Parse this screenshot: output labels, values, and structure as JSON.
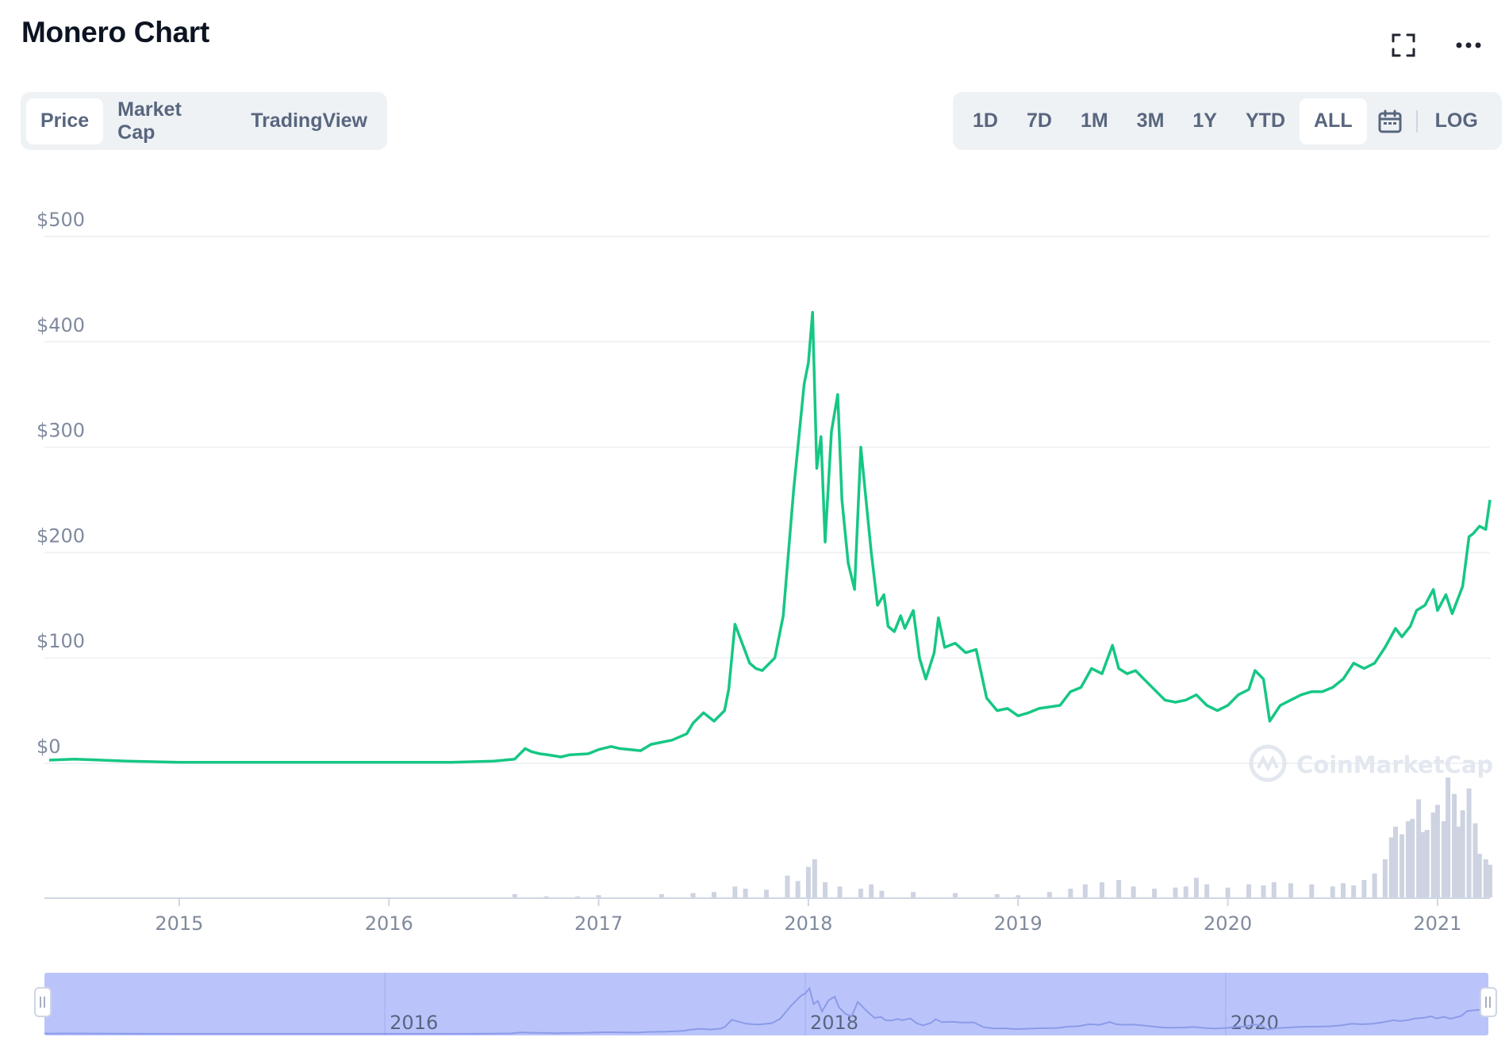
{
  "header": {
    "title": "Monero Chart",
    "expand_icon": "fullscreen-icon",
    "more_icon": "more-horizontal-icon"
  },
  "view_tabs": [
    {
      "label": "Price",
      "active": true
    },
    {
      "label": "Market Cap",
      "active": false
    },
    {
      "label": "TradingView",
      "active": false
    }
  ],
  "range_tabs": [
    {
      "label": "1D",
      "active": false
    },
    {
      "label": "7D",
      "active": false
    },
    {
      "label": "1M",
      "active": false
    },
    {
      "label": "3M",
      "active": false
    },
    {
      "label": "1Y",
      "active": false
    },
    {
      "label": "YTD",
      "active": false
    },
    {
      "label": "ALL",
      "active": true
    }
  ],
  "calendar_icon": "calendar-icon",
  "log_label": "LOG",
  "watermark": "CoinMarketCap",
  "colors": {
    "line": "#16c784",
    "volume": "#cdd3e1",
    "navigator_fill": "#bac4fb",
    "navigator_line": "#8c9be8",
    "grid": "#eff2f5",
    "axis_text": "#808a9d"
  },
  "chart_data": {
    "type": "line",
    "title": "",
    "xlabel": "",
    "ylabel": "",
    "y_ticks": [
      "$0",
      "$100",
      "$200",
      "$300",
      "$400",
      "$500"
    ],
    "x_ticks": [
      "2015",
      "2016",
      "2017",
      "2018",
      "2019",
      "2020",
      "2021"
    ],
    "ylim": [
      0,
      500
    ],
    "grid": true,
    "series": [
      {
        "name": "",
        "x": [
          2014.38,
          2014.5,
          2014.75,
          2015.0,
          2015.5,
          2016.0,
          2016.3,
          2016.5,
          2016.6,
          2016.65,
          2016.68,
          2016.72,
          2016.76,
          2016.82,
          2016.86,
          2016.95,
          2017.0,
          2017.06,
          2017.1,
          2017.2,
          2017.25,
          2017.35,
          2017.42,
          2017.45,
          2017.5,
          2017.55,
          2017.6,
          2017.62,
          2017.65,
          2017.72,
          2017.75,
          2017.78,
          2017.84,
          2017.88,
          2017.93,
          2017.98,
          2018.0,
          2018.02,
          2018.04,
          2018.06,
          2018.08,
          2018.11,
          2018.14,
          2018.16,
          2018.19,
          2018.22,
          2018.25,
          2018.28,
          2018.3,
          2018.33,
          2018.36,
          2018.38,
          2018.41,
          2018.44,
          2018.46,
          2018.5,
          2018.53,
          2018.56,
          2018.6,
          2018.62,
          2018.65,
          2018.7,
          2018.75,
          2018.8,
          2018.85,
          2018.9,
          2018.95,
          2019.0,
          2019.05,
          2019.1,
          2019.2,
          2019.25,
          2019.3,
          2019.35,
          2019.4,
          2019.45,
          2019.48,
          2019.52,
          2019.56,
          2019.6,
          2019.7,
          2019.75,
          2019.8,
          2019.85,
          2019.9,
          2019.95,
          2020.0,
          2020.05,
          2020.1,
          2020.13,
          2020.17,
          2020.2,
          2020.25,
          2020.3,
          2020.35,
          2020.4,
          2020.45,
          2020.5,
          2020.55,
          2020.6,
          2020.65,
          2020.7,
          2020.75,
          2020.8,
          2020.83,
          2020.87,
          2020.9,
          2020.94,
          2020.98,
          2021.0,
          2021.04,
          2021.07,
          2021.12,
          2021.15,
          2021.17,
          2021.2,
          2021.23,
          2021.25
        ],
        "y": [
          3,
          4,
          2,
          1,
          1,
          1,
          1,
          2,
          4,
          14,
          11,
          9,
          8,
          6,
          8,
          9,
          13,
          16,
          14,
          12,
          18,
          22,
          28,
          38,
          48,
          40,
          50,
          70,
          132,
          95,
          90,
          88,
          100,
          140,
          260,
          360,
          380,
          428,
          280,
          310,
          210,
          315,
          350,
          250,
          190,
          165,
          300,
          240,
          200,
          150,
          160,
          130,
          125,
          140,
          128,
          145,
          100,
          80,
          105,
          138,
          110,
          114,
          105,
          108,
          62,
          50,
          52,
          45,
          48,
          52,
          55,
          68,
          72,
          90,
          85,
          112,
          90,
          85,
          88,
          80,
          60,
          58,
          60,
          65,
          55,
          50,
          55,
          65,
          70,
          88,
          80,
          40,
          55,
          60,
          65,
          68,
          68,
          72,
          80,
          95,
          90,
          95,
          110,
          128,
          120,
          130,
          145,
          150,
          165,
          145,
          160,
          142,
          168,
          215,
          218,
          225,
          222,
          250
        ]
      }
    ],
    "volume": {
      "x": [
        2016.6,
        2016.75,
        2016.9,
        2017.0,
        2017.3,
        2017.45,
        2017.55,
        2017.65,
        2017.7,
        2017.8,
        2017.9,
        2017.95,
        2018.0,
        2018.03,
        2018.08,
        2018.15,
        2018.25,
        2018.3,
        2018.35,
        2018.5,
        2018.7,
        2018.9,
        2019.0,
        2019.15,
        2019.25,
        2019.32,
        2019.4,
        2019.48,
        2019.55,
        2019.65,
        2019.75,
        2019.8,
        2019.85,
        2019.9,
        2020.0,
        2020.1,
        2020.17,
        2020.22,
        2020.3,
        2020.4,
        2020.5,
        2020.55,
        2020.6,
        2020.65,
        2020.7,
        2020.75,
        2020.78,
        2020.8,
        2020.83,
        2020.86,
        2020.88,
        2020.91,
        2020.93,
        2020.95,
        2020.98,
        2021.0,
        2021.03,
        2021.05,
        2021.08,
        2021.1,
        2021.12,
        2021.15,
        2021.18,
        2021.2,
        2021.23,
        2021.25
      ],
      "values": [
        3,
        1,
        1,
        2,
        3,
        4,
        5,
        10,
        8,
        7,
        20,
        15,
        28,
        35,
        14,
        10,
        8,
        12,
        6,
        5,
        4,
        3,
        2,
        5,
        8,
        12,
        14,
        16,
        10,
        8,
        9,
        10,
        18,
        12,
        9,
        12,
        11,
        14,
        13,
        12,
        10,
        13,
        11,
        16,
        22,
        35,
        55,
        65,
        58,
        70,
        72,
        90,
        60,
        62,
        78,
        85,
        70,
        110,
        95,
        65,
        80,
        100,
        68,
        40,
        35,
        30
      ]
    }
  },
  "navigator": {
    "x_ticks": [
      "2016",
      "2018",
      "2020"
    ]
  }
}
